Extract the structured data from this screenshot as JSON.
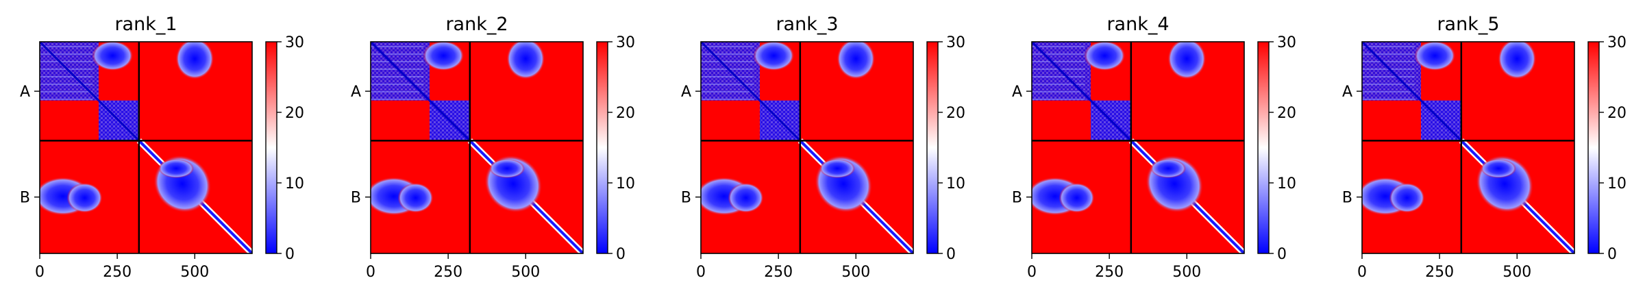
{
  "chart_data": {
    "type": "heatmap",
    "colormap": {
      "name": "bwr",
      "low": "#0000ff",
      "mid": "#ffffff",
      "high": "#ff0000"
    },
    "value_range": [
      0,
      30
    ],
    "colorbar_ticks": [
      0,
      10,
      20,
      30
    ],
    "x_ticks": [
      0,
      250,
      500
    ],
    "x_range": [
      0,
      685
    ],
    "chain_boundary": 320,
    "chain_labels": [
      "A",
      "B"
    ],
    "panels": [
      {
        "title": "rank_1"
      },
      {
        "title": "rank_2"
      },
      {
        "title": "rank_3"
      },
      {
        "title": "rank_4"
      },
      {
        "title": "rank_5"
      }
    ]
  }
}
